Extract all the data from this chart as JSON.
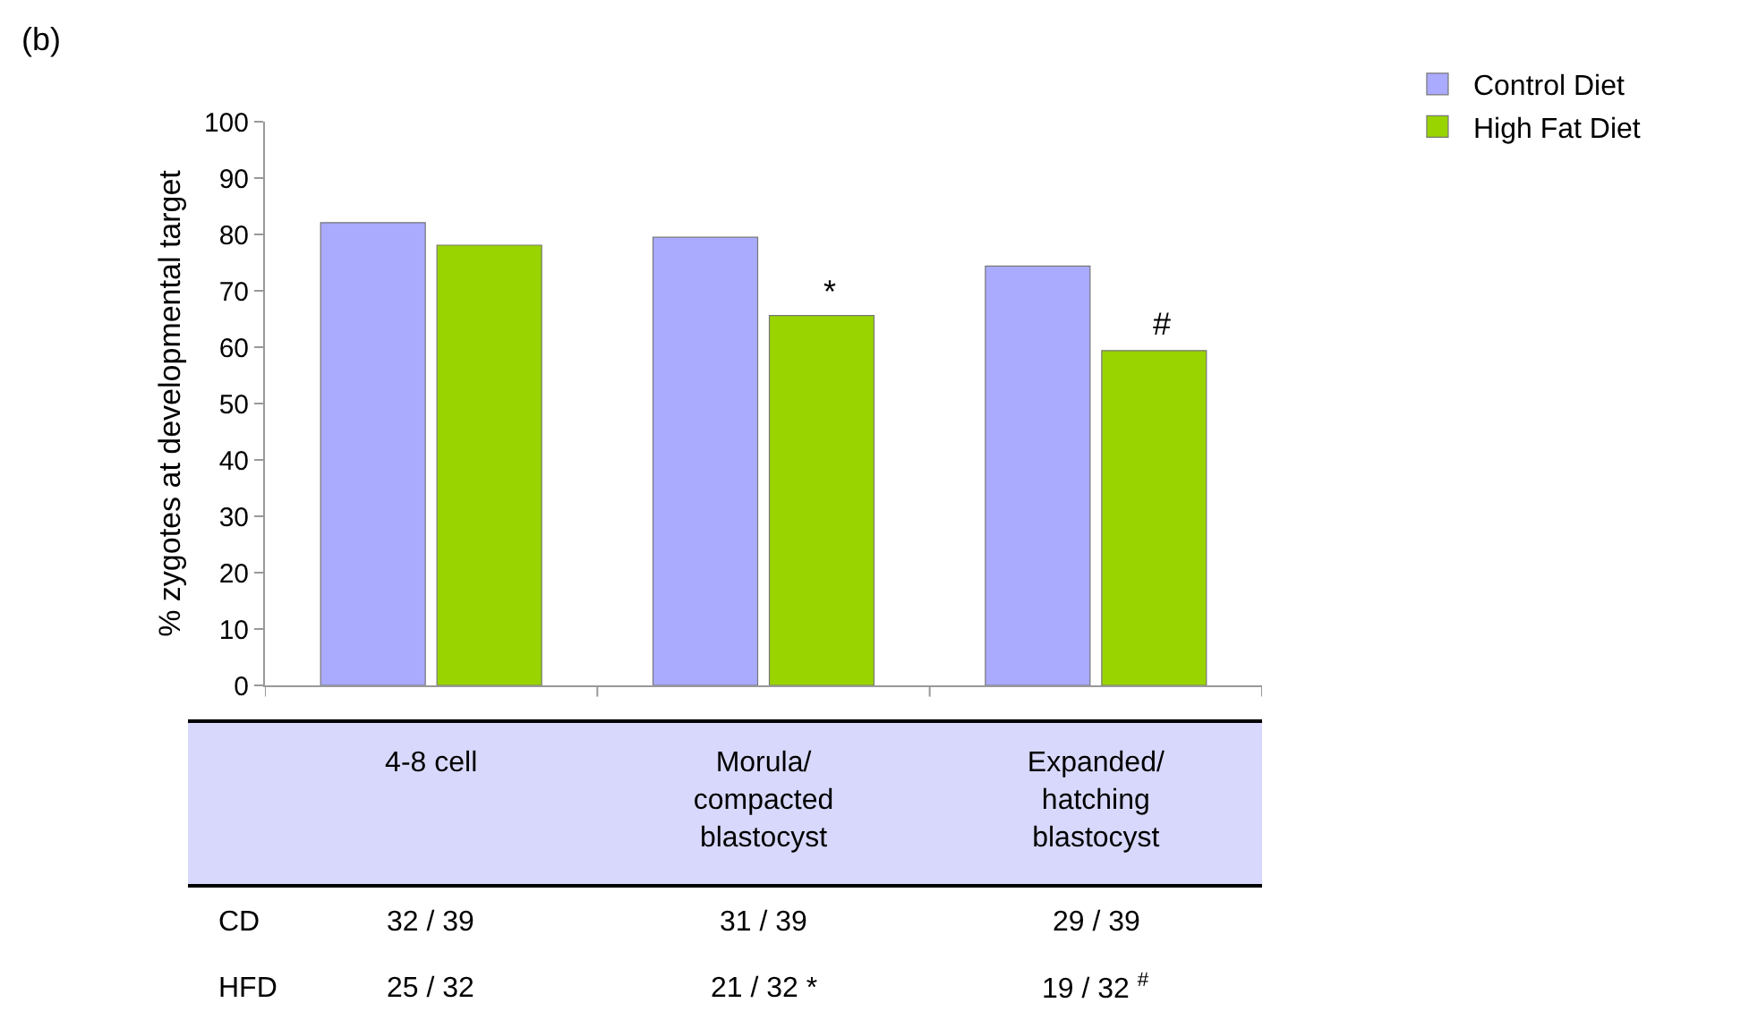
{
  "chart_data": {
    "type": "bar",
    "ylabel": "% zygotes at developmental target",
    "categories": [
      "4-8 cell",
      "Morula/\ncompacted\nblastocyst",
      "Expanded/\nhatching\nblastocyst"
    ],
    "series": [
      {
        "name": "Control Diet",
        "color": "#aaaaff",
        "values": [
          82.1,
          79.5,
          74.4
        ]
      },
      {
        "name": "High Fat Diet",
        "color": "#99d400",
        "values": [
          78.1,
          65.6,
          59.4
        ]
      }
    ],
    "ylim": [
      0,
      100
    ],
    "yticks": [
      0,
      10,
      20,
      30,
      40,
      50,
      60,
      70,
      80,
      90,
      100
    ],
    "grid": false,
    "legend": "top right",
    "annotations": [
      "(b)",
      "CD",
      "32 / 39",
      "31 / 39",
      "29 / 39",
      "HFD",
      "25 / 32",
      "21 / 32 *",
      "19 / 32 $^{#}$",
      {
        "text": "*",
        "x": "Morula/\ncompacted\nblastocyst",
        "y": 70
      },
      {
        "text": "#",
        "x": "Expanded/\nhatching\nblastocyst",
        "y": 64
      }
    ]
  }
}
